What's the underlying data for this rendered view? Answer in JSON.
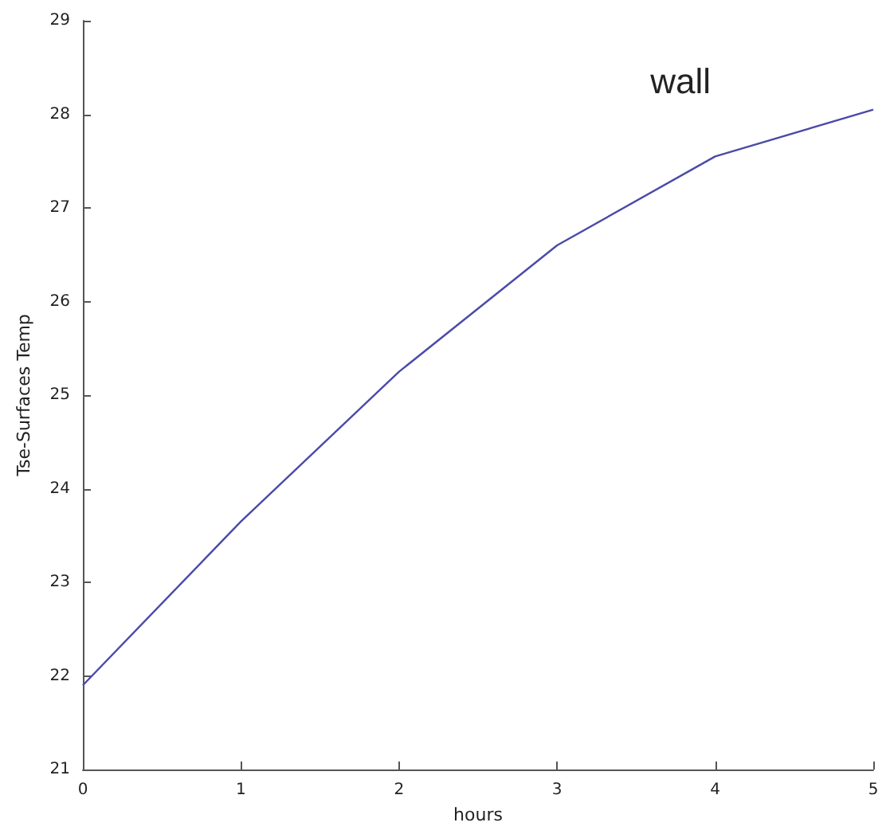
{
  "chart_data": {
    "type": "line",
    "xlabel": "hours",
    "ylabel": "Tse-Surfaces Temp",
    "annotations": [
      "wall"
    ],
    "x": [
      0,
      1,
      2,
      3,
      4,
      5
    ],
    "series": [
      {
        "color": "#4a4aa8",
        "values": [
          21.9,
          23.65,
          25.25,
          26.6,
          27.55,
          28.05
        ]
      }
    ],
    "xlim": [
      0,
      5
    ],
    "xticks": [
      0,
      1,
      2,
      3,
      4,
      5
    ],
    "ylim": [
      21,
      29
    ],
    "yticks": [
      21,
      22,
      23,
      24,
      25,
      26,
      27,
      28,
      29
    ],
    "marker": "none",
    "line_style": "solid"
  }
}
